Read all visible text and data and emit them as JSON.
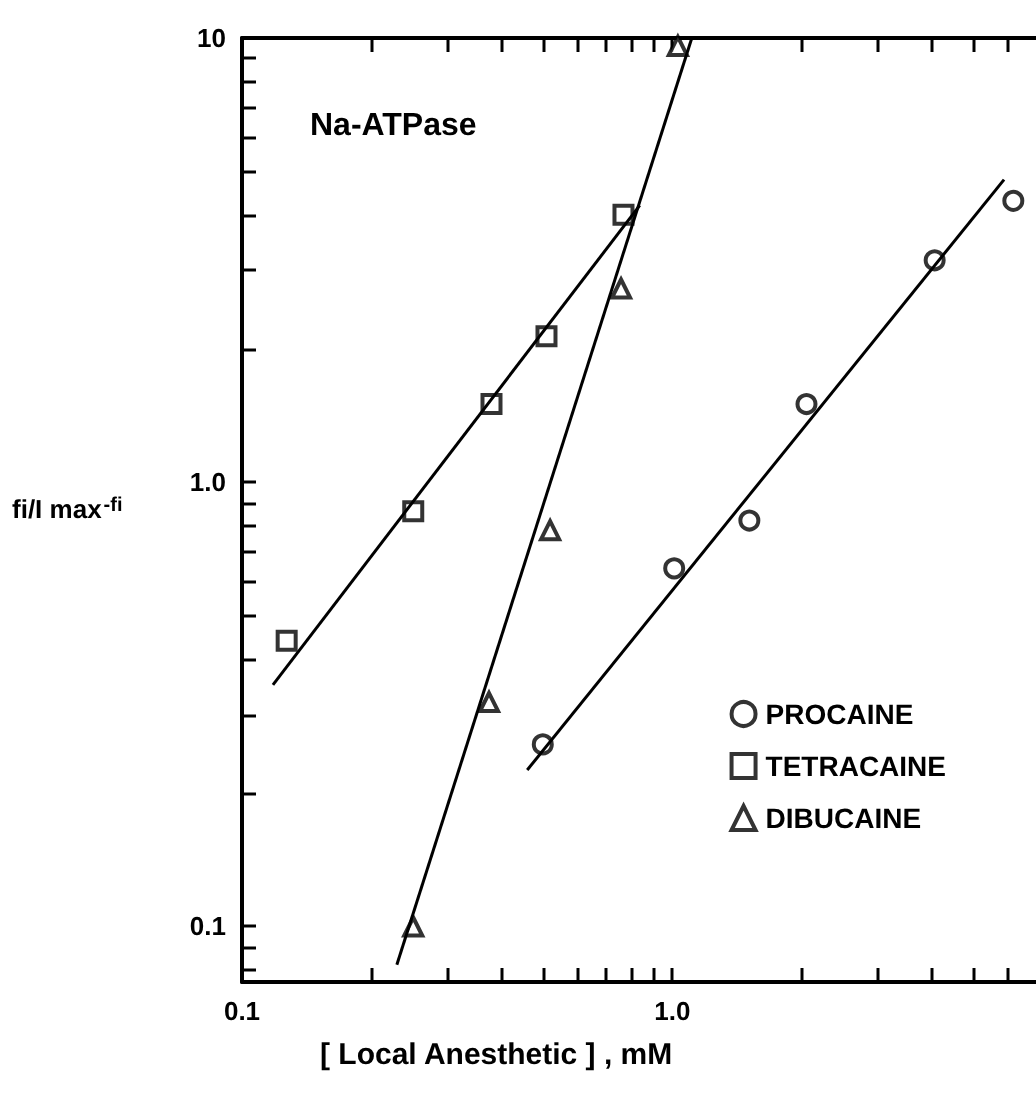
{
  "chart_data": {
    "type": "scatter",
    "title": "Na-ATPase",
    "xlabel": "[ Local Anesthetic ] , mM",
    "ylabel": "fi/I max$^{-fi}$",
    "log": "xy",
    "grid": false,
    "legend": "right",
    "xlim": [
      0.1,
      7
    ],
    "ylim": [
      0.075,
      10
    ],
    "xticks": [
      {
        "value": 0.1,
        "label": "0.1"
      },
      {
        "value": 0.2,
        "label": null
      },
      {
        "value": 0.3,
        "label": null
      },
      {
        "value": 0.4,
        "label": null
      },
      {
        "value": 0.5,
        "label": null
      },
      {
        "value": 0.6,
        "label": null
      },
      {
        "value": 0.7,
        "label": null
      },
      {
        "value": 0.8,
        "label": null
      },
      {
        "value": 0.9,
        "label": null
      },
      {
        "value": 1,
        "label": "1.0"
      },
      {
        "value": 2,
        "label": null
      },
      {
        "value": 3,
        "label": null
      },
      {
        "value": 4,
        "label": null
      },
      {
        "value": 5,
        "label": null
      },
      {
        "value": 6,
        "label": null
      }
    ],
    "yticks": [
      {
        "value": 0.08,
        "label": null
      },
      {
        "value": 0.09,
        "label": null
      },
      {
        "value": 0.1,
        "label": "0.1"
      },
      {
        "value": 0.2,
        "label": null
      },
      {
        "value": 0.3,
        "label": null
      },
      {
        "value": 0.4,
        "label": null
      },
      {
        "value": 0.5,
        "label": null
      },
      {
        "value": 0.6,
        "label": null
      },
      {
        "value": 0.7,
        "label": null
      },
      {
        "value": 0.8,
        "label": null
      },
      {
        "value": 0.9,
        "label": null
      },
      {
        "value": 1,
        "label": "1.0"
      },
      {
        "value": 2,
        "label": null
      },
      {
        "value": 3,
        "label": null
      },
      {
        "value": 4,
        "label": null
      },
      {
        "value": 5,
        "label": null
      },
      {
        "value": 6,
        "label": null
      },
      {
        "value": 7,
        "label": null
      },
      {
        "value": 8,
        "label": null
      },
      {
        "value": 9,
        "label": null
      },
      {
        "value": 10,
        "label": "10"
      }
    ],
    "series": [
      {
        "name": "PROCAINE",
        "color": "#000000",
        "marker": "circle",
        "x": [
          0.5,
          1.01,
          1.51,
          2.05,
          4.07,
          6.2
        ],
        "values": [
          0.257,
          0.64,
          0.82,
          1.5,
          3.16,
          4.3
        ]
      },
      {
        "name": "TETRACAINE",
        "color": "#000000",
        "marker": "square",
        "x": [
          0.127,
          0.25,
          0.38,
          0.51,
          0.77
        ],
        "values": [
          0.44,
          0.86,
          1.5,
          2.13,
          4.0
        ]
      },
      {
        "name": "DIBUCAINE",
        "color": "#000000",
        "marker": "triangle",
        "x": [
          0.25,
          0.375,
          0.52,
          0.76,
          1.03
        ],
        "values": [
          0.1,
          0.32,
          0.78,
          2.73,
          9.6
        ]
      },
      {
        "type": "line",
        "color": "#000000",
        "line_style": "solid",
        "x": [
          0.46,
          5.9
        ],
        "values": [
          0.225,
          4.8
        ]
      },
      {
        "type": "line",
        "color": "#000000",
        "line_style": "solid",
        "x": [
          0.118,
          0.84
        ],
        "values": [
          0.35,
          4.2
        ]
      },
      {
        "type": "line",
        "color": "#000000",
        "line_style": "solid",
        "x": [
          0.229,
          1.11
        ],
        "values": [
          0.082,
          10
        ]
      }
    ]
  }
}
